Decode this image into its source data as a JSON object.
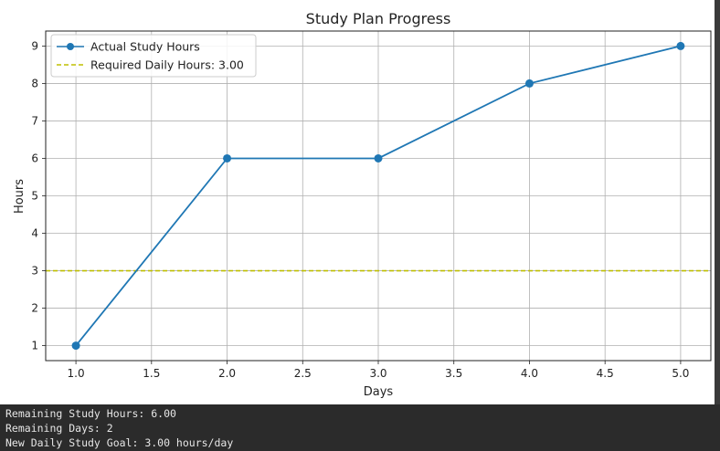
{
  "console": {
    "lines": [
      "Remaining Study Hours: 6.00",
      "Remaining Days: 2",
      "New Daily Study Goal: 3.00 hours/day"
    ]
  },
  "colors": {
    "series": "#1f77b4",
    "required": "#bfbf00",
    "grid": "#b0b0b0",
    "console_bg": "#2b2b2b",
    "console_text": "#e6e6e6"
  },
  "chart_data": {
    "type": "line",
    "title": "Study Plan Progress",
    "xlabel": "Days",
    "ylabel": "Hours",
    "xlim": [
      0.8,
      5.2
    ],
    "ylim": [
      0.6,
      9.4
    ],
    "xticks": [
      "1.0",
      "1.5",
      "2.0",
      "2.5",
      "3.0",
      "3.5",
      "4.0",
      "4.5",
      "5.0"
    ],
    "yticks": [
      "1",
      "2",
      "3",
      "4",
      "5",
      "6",
      "7",
      "8",
      "9"
    ],
    "grid": true,
    "legend_position": "top-left",
    "series": [
      {
        "name": "Actual Study Hours",
        "x": [
          1,
          2,
          3,
          4,
          5
        ],
        "y": [
          1,
          6,
          6,
          8,
          9
        ],
        "style": "solid",
        "marker": "circle"
      }
    ],
    "hlines": [
      {
        "name": "Required Daily Hours: 3.00",
        "y": 3.0,
        "style": "dashed"
      }
    ]
  }
}
